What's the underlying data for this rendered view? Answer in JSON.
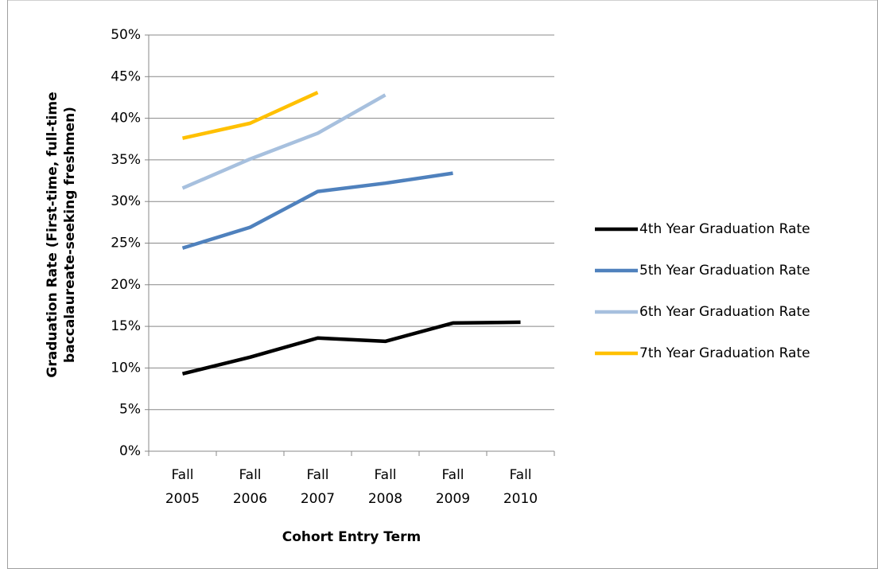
{
  "chart_data": {
    "type": "line",
    "x_label": "Cohort Entry Term",
    "y_label": "Graduation Rate (First-time, full-time baccalaureate-seeking freshmen)",
    "categories": [
      "Fall 2005",
      "Fall 2006",
      "Fall 2007",
      "Fall 2008",
      "Fall 2009",
      "Fall 2010"
    ],
    "series": [
      {
        "name": "4th Year Graduation Rate",
        "color": "#000000",
        "values": [
          9.3,
          11.3,
          13.6,
          13.2,
          15.4,
          15.5
        ]
      },
      {
        "name": "5th Year Graduation Rate",
        "color": "#4f81bd",
        "values": [
          24.4,
          26.9,
          31.2,
          32.2,
          33.4,
          null
        ]
      },
      {
        "name": "6th Year Graduation Rate",
        "color": "#a7c0de",
        "values": [
          31.6,
          35.1,
          38.2,
          42.8,
          null,
          null
        ]
      },
      {
        "name": "7th Year Graduation Rate",
        "color": "#ffc000",
        "values": [
          37.6,
          39.4,
          43.1,
          null,
          null,
          null
        ]
      }
    ],
    "ylim": [
      0,
      50
    ],
    "yticks": [
      {
        "value": 0,
        "label": "0%"
      },
      {
        "value": 5,
        "label": "5%"
      },
      {
        "value": 10,
        "label": "10%"
      },
      {
        "value": 15,
        "label": "15%"
      },
      {
        "value": 20,
        "label": "20%"
      },
      {
        "value": 25,
        "label": "25%"
      },
      {
        "value": 30,
        "label": "30%"
      },
      {
        "value": 35,
        "label": "35%"
      },
      {
        "value": 40,
        "label": "40%"
      },
      {
        "value": 45,
        "label": "45%"
      },
      {
        "value": 50,
        "label": "50%"
      }
    ],
    "grid": true,
    "legend": "right"
  }
}
